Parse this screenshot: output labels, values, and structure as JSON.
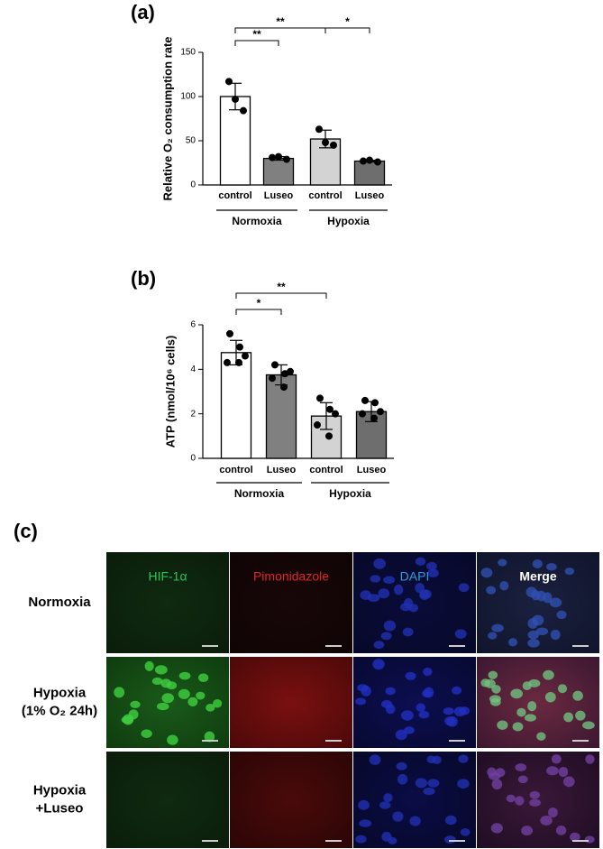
{
  "chart_data": [
    {
      "type": "bar",
      "panel_label": "(a)",
      "y_label": "Relative O₂ consumption rate",
      "categories": [
        "control",
        "Luseo",
        "control",
        "Luseo"
      ],
      "groups": [
        "Normoxia",
        "Hypoxia"
      ],
      "values": [
        100,
        30,
        52,
        27
      ],
      "errors": [
        15,
        2,
        10,
        1
      ],
      "points": [
        [
          117,
          84,
          97
        ],
        [
          31,
          29,
          32
        ],
        [
          63,
          45,
          48
        ],
        [
          27,
          26,
          28
        ]
      ],
      "colors": [
        "#ffffff",
        "#808080",
        "#d3d3d3",
        "#6e6e6e"
      ],
      "ylim": [
        0,
        150
      ],
      "yticks": [
        0,
        50,
        100,
        150
      ],
      "annotations": [
        "**",
        "**",
        "*"
      ]
    },
    {
      "type": "bar",
      "panel_label": "(b)",
      "y_label": "ATP (nmol/10⁶ cells)",
      "categories": [
        "control",
        "Luseo",
        "control",
        "Luseo"
      ],
      "groups": [
        "Normoxia",
        "Hypoxia"
      ],
      "values": [
        4.75,
        3.75,
        1.9,
        2.1
      ],
      "errors": [
        0.55,
        0.45,
        0.6,
        0.45
      ],
      "points": [
        [
          5.6,
          5.0,
          4.6,
          4.3,
          4.3
        ],
        [
          4.2,
          3.8,
          3.9,
          3.6,
          3.2
        ],
        [
          2.7,
          2.2,
          2.0,
          1.5,
          1.0
        ],
        [
          2.6,
          2.5,
          2.1,
          2.0,
          1.8
        ]
      ],
      "colors": [
        "#ffffff",
        "#808080",
        "#d3d3d3",
        "#6e6e6e"
      ],
      "ylim": [
        0,
        6
      ],
      "yticks": [
        0,
        2,
        4,
        6
      ],
      "annotations": [
        "*",
        "**"
      ]
    }
  ],
  "image_panel": {
    "panel_label": "(c)",
    "columns": [
      "HIF-1α",
      "Pimonidazole",
      "DAPI",
      "Merge"
    ],
    "rows": [
      [
        "Normoxia"
      ],
      [
        "Hypoxia",
        "(1% O₂ 24h)"
      ],
      [
        "Hypoxia",
        "+Luseo"
      ]
    ]
  }
}
